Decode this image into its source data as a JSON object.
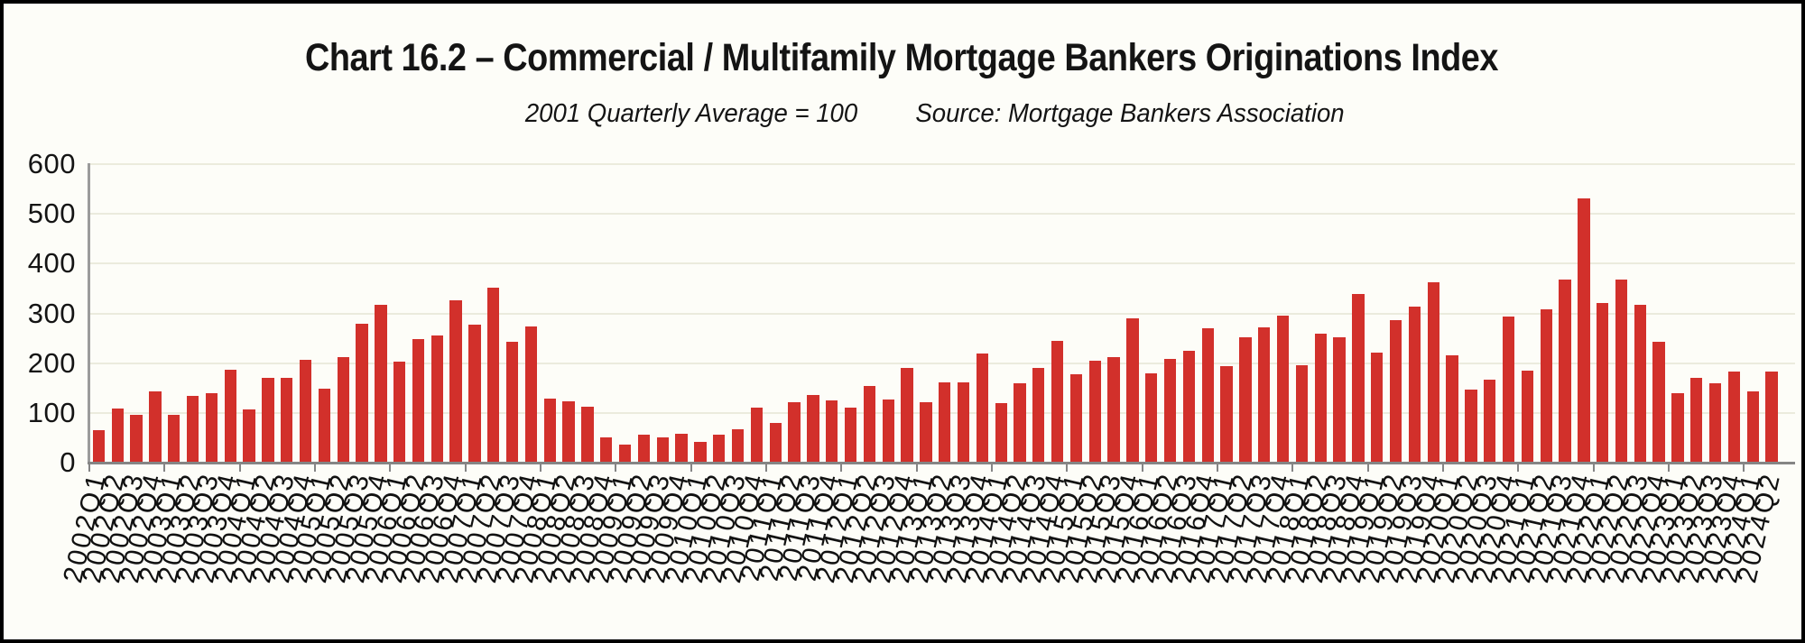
{
  "header": {
    "title": "Chart 16.2 – Commercial / Multifamily Mortgage Bankers Originations Index",
    "subtitle_left": "2001 Quarterly Average = 100",
    "subtitle_right": "Source: Mortgage Bankers Association"
  },
  "colors": {
    "bar": "#d2302b",
    "gridline": "#ebebdd",
    "axis": "#858585",
    "frame_border": "#000000",
    "background": "#fdfdf8"
  },
  "chart_data": {
    "type": "bar",
    "title": "Chart 16.2 – Commercial / Multifamily Mortgage Bankers Originations Index",
    "annotations": [
      "2001 Quarterly Average = 100",
      "Source: Mortgage Bankers Association"
    ],
    "xlabel": "",
    "ylabel": "",
    "ylim": [
      0,
      600
    ],
    "y_ticks": [
      0,
      100,
      200,
      300,
      400,
      500,
      600
    ],
    "grid": "horizontal",
    "legend": "none",
    "x_tick_interval": "every quarter labeled, axis tick marks at year boundaries",
    "categories": [
      "2002Q1",
      "2002Q2",
      "2002Q3",
      "2002Q4",
      "2003Q1",
      "2003Q2",
      "2003Q3",
      "2003Q4",
      "2004Q1",
      "2004Q2",
      "2004Q3",
      "2004Q4",
      "2005Q1",
      "2005Q2",
      "2005Q3",
      "2005Q4",
      "2006Q1",
      "2006Q2",
      "2006Q3",
      "2006Q4",
      "2007Q1",
      "2007Q2",
      "2007Q3",
      "2007Q4",
      "2008Q1",
      "2008Q2",
      "2008Q3",
      "2008Q4",
      "2009Q1",
      "2009Q2",
      "2009Q3",
      "2009Q4",
      "2010Q1",
      "2010Q2",
      "2010Q3",
      "2010Q4",
      "2011Q1",
      "2011Q2",
      "2011Q3",
      "2011Q4",
      "2012Q1",
      "2012Q2",
      "2012Q3",
      "2012Q4",
      "2013Q1",
      "2013Q2",
      "2013Q3",
      "2013Q4",
      "2014Q1",
      "2014Q2",
      "2014Q3",
      "2014Q4",
      "2015Q1",
      "2015Q2",
      "2015Q3",
      "2015Q4",
      "2016Q1",
      "2016Q2",
      "2016Q3",
      "2016Q4",
      "2017Q1",
      "2017Q2",
      "2017Q3",
      "2017Q4",
      "2018Q1",
      "2018Q2",
      "2018Q3",
      "2018Q4",
      "2019Q1",
      "2019Q2",
      "2019Q3",
      "2019Q4",
      "2020Q1",
      "2020Q2",
      "2020Q3",
      "2020Q4",
      "2021Q1",
      "2021Q2",
      "2021Q3",
      "2021Q4",
      "2022Q1",
      "2022Q2",
      "2022Q3",
      "2022Q4",
      "2023Q1",
      "2023Q2",
      "2023Q3",
      "2023Q4",
      "2024Q1",
      "2024Q2"
    ],
    "values": [
      65,
      108,
      96,
      143,
      97,
      134,
      140,
      186,
      107,
      171,
      171,
      206,
      148,
      212,
      279,
      317,
      203,
      249,
      255,
      326,
      277,
      351,
      243,
      274,
      128,
      124,
      112,
      50,
      36,
      56,
      50,
      58,
      42,
      57,
      67,
      111,
      79,
      122,
      136,
      126,
      110,
      155,
      127,
      190,
      121,
      161,
      162,
      220,
      119,
      159,
      190,
      244,
      178,
      205,
      212,
      290,
      179,
      209,
      224,
      270,
      194,
      252,
      272,
      296,
      196,
      260,
      252,
      339,
      221,
      287,
      313,
      363,
      216,
      146,
      166,
      294,
      185,
      308,
      368,
      532,
      320,
      368,
      318,
      243,
      139,
      171,
      160,
      184,
      143,
      183
    ]
  }
}
